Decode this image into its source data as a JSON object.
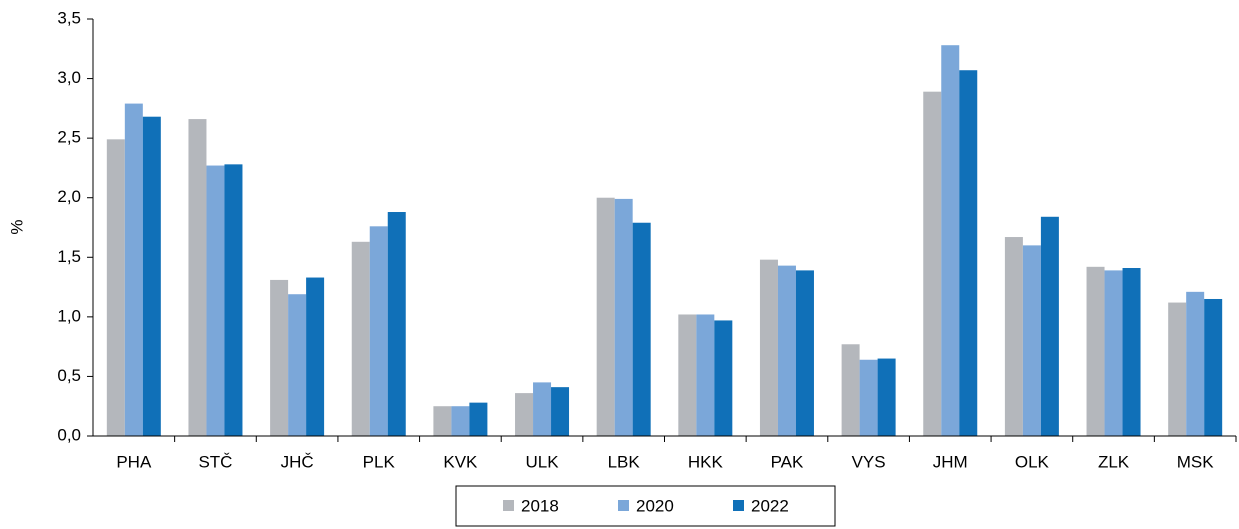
{
  "chart_data": {
    "type": "bar",
    "y_label": "%",
    "categories": [
      "PHA",
      "STČ",
      "JHČ",
      "PLK",
      "KVK",
      "ULK",
      "LBK",
      "HKK",
      "PAK",
      "VYS",
      "JHM",
      "OLK",
      "ZLK",
      "MSK"
    ],
    "series": [
      {
        "name": "2018",
        "color": "#b4b7bc",
        "values": [
          2.49,
          2.66,
          1.31,
          1.63,
          0.25,
          0.36,
          2.0,
          1.02,
          1.48,
          0.77,
          2.89,
          1.67,
          1.42,
          1.12
        ]
      },
      {
        "name": "2020",
        "color": "#7ba7d9",
        "values": [
          2.79,
          2.27,
          1.19,
          1.76,
          0.25,
          0.45,
          1.99,
          1.02,
          1.43,
          0.64,
          3.28,
          1.6,
          1.39,
          1.21
        ]
      },
      {
        "name": "2022",
        "color": "#1070b8",
        "values": [
          2.68,
          2.28,
          1.33,
          1.88,
          0.28,
          0.41,
          1.79,
          0.97,
          1.39,
          0.65,
          3.07,
          1.84,
          1.41,
          1.15
        ]
      }
    ],
    "ylim": [
      0,
      3.5
    ],
    "yticks": [
      {
        "value": 0,
        "label": "0,0"
      },
      {
        "value": 0.5,
        "label": "0,5"
      },
      {
        "value": 1,
        "label": "1,0"
      },
      {
        "value": 1.5,
        "label": "1,5"
      },
      {
        "value": 2,
        "label": "2,0"
      },
      {
        "value": 2.5,
        "label": "2,5"
      },
      {
        "value": 3,
        "label": "3,0"
      },
      {
        "value": 3.5,
        "label": "3,5"
      }
    ],
    "grid": false,
    "legend": "bottom"
  }
}
